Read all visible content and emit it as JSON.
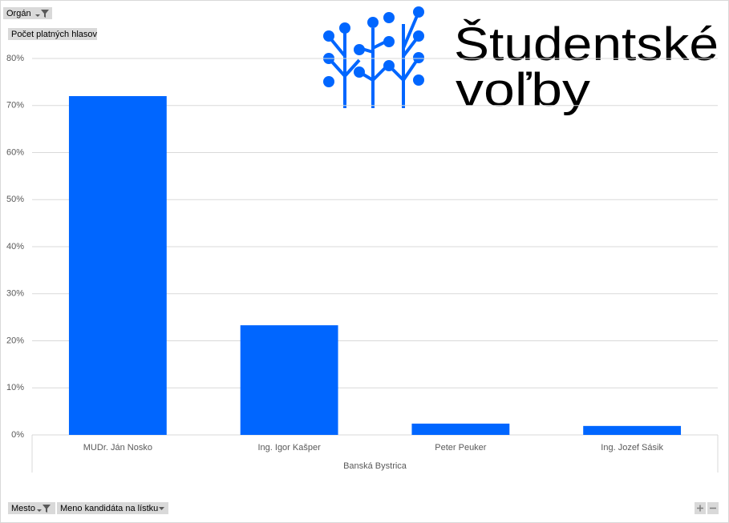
{
  "chart_data": {
    "type": "bar",
    "categories": [
      "MUDr. Ján Nosko",
      "Ing. Igor Kašper",
      "Peter Peuker",
      "Ing. Jozef Sásik"
    ],
    "values": [
      72.0,
      23.3,
      2.4,
      1.9
    ],
    "color": "#0066ff",
    "group_label": "Banská Bystrica",
    "ylim": [
      0,
      80
    ],
    "yticks": [
      {
        "value": 0,
        "label": "0%"
      },
      {
        "value": 10,
        "label": "10%"
      },
      {
        "value": 20,
        "label": "20%"
      },
      {
        "value": 30,
        "label": "30%"
      },
      {
        "value": 40,
        "label": "40%"
      },
      {
        "value": 50,
        "label": "50%"
      },
      {
        "value": 60,
        "label": "60%"
      },
      {
        "value": 70,
        "label": "70%"
      },
      {
        "value": 80,
        "label": "80%"
      }
    ],
    "grid": true
  },
  "field_buttons": {
    "filter": "Orgán",
    "value_field": "Počet platných hlasov",
    "axis_fields": [
      "Mesto",
      "Meno kandidáta na lístku"
    ]
  },
  "logo": {
    "line1": "Študentské",
    "line2": "voľby"
  }
}
